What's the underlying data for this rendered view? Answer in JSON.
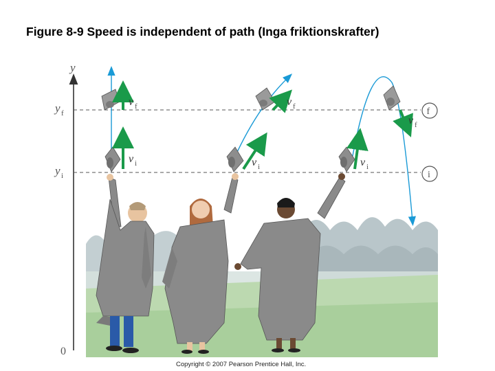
{
  "title": "Figure 8-9 Speed is independent of path (Inga friktionskrafter)",
  "axis": {
    "y_label": "y",
    "yf_label": "y",
    "yf_sub": "f",
    "yi_label": "y",
    "yi_sub": "i",
    "origin_label": "0"
  },
  "levels": {
    "final_marker": "f",
    "initial_marker": "i"
  },
  "vectors": {
    "v_symbol": "v",
    "final_sub": "f",
    "initial_sub": "i"
  },
  "copyright": "Copyright © 2007 Pearson Prentice Hall, Inc.",
  "colors": {
    "trajectory": "#1a9ad6",
    "vector": "#1a9a4a",
    "gown": "#8a8a8a",
    "crowd_far": "#b8c4c8",
    "crowd_near": "#c9d4cf",
    "grass": "#bcd9b0"
  }
}
